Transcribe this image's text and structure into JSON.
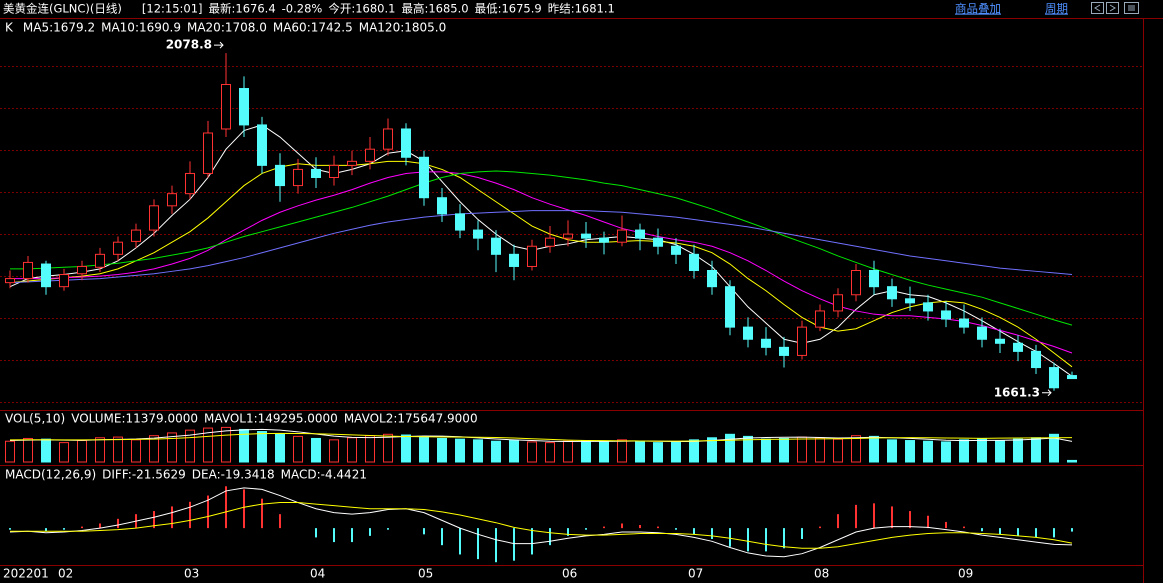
{
  "header": {
    "title": "美黄金连(GLNC)(日线)",
    "time": "[12:15:01]",
    "items": [
      {
        "label": "最新:",
        "value": "1676.4",
        "color": "#00e600"
      },
      {
        "label": "",
        "value": "-0.28%",
        "color": "#00e600"
      },
      {
        "label": "今开:",
        "value": "1680.1",
        "color": "#00e600"
      },
      {
        "label": "最高:",
        "value": "1685.0",
        "color": "#ff3232"
      },
      {
        "label": "最低:",
        "value": "1675.9",
        "color": "#00e600"
      },
      {
        "label": "昨结:",
        "value": "1681.1",
        "color": "#ffffff"
      }
    ],
    "buttons": [
      "商品叠加",
      "周期"
    ]
  },
  "chart_data": [
    {
      "type": "candlestick",
      "label": "K",
      "categories": [
        "202201",
        null,
        null,
        "02",
        null,
        null,
        null,
        null,
        null,
        null,
        "03",
        null,
        null,
        null,
        null,
        null,
        null,
        "04",
        null,
        null,
        null,
        null,
        null,
        "05",
        null,
        null,
        null,
        null,
        null,
        null,
        null,
        "06",
        null,
        null,
        null,
        null,
        null,
        null,
        "07",
        null,
        null,
        null,
        null,
        null,
        null,
        "08",
        null,
        null,
        null,
        null,
        null,
        null,
        null,
        "09",
        null,
        null,
        null,
        null,
        null,
        null
      ],
      "open": [
        1795,
        1800,
        1818,
        1790,
        1806,
        1814,
        1830,
        1846,
        1860,
        1890,
        1905,
        1930,
        1985,
        2035,
        1990,
        1940,
        1915,
        1935,
        1925,
        1940,
        1945,
        1960,
        1985,
        1950,
        1900,
        1880,
        1860,
        1850,
        1830,
        1815,
        1840,
        1850,
        1855,
        1850,
        1845,
        1860,
        1850,
        1840,
        1830,
        1810,
        1790,
        1740,
        1725,
        1715,
        1705,
        1740,
        1760,
        1780,
        1810,
        1790,
        1775,
        1770,
        1760,
        1750,
        1740,
        1725,
        1720,
        1710,
        1690,
        1680.1
      ],
      "high": [
        1810,
        1828,
        1822,
        1812,
        1822,
        1838,
        1852,
        1868,
        1898,
        1915,
        1945,
        1995,
        2078.8,
        2050,
        2000,
        1955,
        1948,
        1950,
        1952,
        1958,
        1975,
        1998,
        1992,
        1958,
        1912,
        1892,
        1872,
        1860,
        1842,
        1848,
        1865,
        1872,
        1870,
        1858,
        1878,
        1868,
        1862,
        1850,
        1842,
        1822,
        1798,
        1752,
        1740,
        1728,
        1748,
        1768,
        1788,
        1818,
        1822,
        1800,
        1790,
        1780,
        1772,
        1768,
        1752,
        1738,
        1730,
        1718,
        1696,
        1685.0
      ],
      "low": [
        1788,
        1795,
        1780,
        1785,
        1798,
        1808,
        1822,
        1838,
        1852,
        1880,
        1898,
        1925,
        1975,
        1975,
        1930,
        1895,
        1905,
        1912,
        1915,
        1928,
        1935,
        1952,
        1940,
        1890,
        1870,
        1850,
        1835,
        1808,
        1798,
        1810,
        1832,
        1840,
        1838,
        1830,
        1840,
        1835,
        1830,
        1818,
        1800,
        1780,
        1730,
        1715,
        1705,
        1690,
        1700,
        1735,
        1752,
        1772,
        1780,
        1765,
        1760,
        1748,
        1740,
        1732,
        1715,
        1708,
        1698,
        1682,
        1661.3,
        1675.9
      ],
      "close": [
        1800,
        1820,
        1790,
        1805,
        1815,
        1830,
        1845,
        1860,
        1890,
        1905,
        1930,
        1980,
        2040,
        1990,
        1940,
        1915,
        1935,
        1925,
        1940,
        1945,
        1960,
        1985,
        1950,
        1900,
        1880,
        1860,
        1850,
        1830,
        1815,
        1840,
        1850,
        1855,
        1850,
        1845,
        1860,
        1850,
        1840,
        1830,
        1810,
        1790,
        1740,
        1725,
        1715,
        1705,
        1740,
        1760,
        1780,
        1810,
        1790,
        1775,
        1770,
        1760,
        1750,
        1740,
        1725,
        1720,
        1710,
        1690,
        1665,
        1676.4
      ],
      "up_color": "#ff3232",
      "down_color": "#54fcfc",
      "ylim": [
        1640,
        2095
      ],
      "series": [
        {
          "name": "MA5:1679.2",
          "color": "#ffffff",
          "values": [
            1790,
            1800,
            1803,
            1805,
            1808,
            1812,
            1822,
            1838,
            1856,
            1878,
            1898,
            1925,
            1960,
            1983,
            1990,
            1975,
            1955,
            1935,
            1930,
            1935,
            1942,
            1955,
            1958,
            1945,
            1920,
            1895,
            1873,
            1855,
            1840,
            1835,
            1840,
            1843,
            1848,
            1850,
            1852,
            1850,
            1848,
            1842,
            1830,
            1815,
            1790,
            1765,
            1745,
            1725,
            1720,
            1725,
            1740,
            1762,
            1780,
            1785,
            1780,
            1778,
            1770,
            1760,
            1748,
            1735,
            1722,
            1710,
            1695,
            1679.2
          ]
        },
        {
          "name": "MA10:1690.9",
          "color": "#ffff00",
          "values": [
            1795,
            1797,
            1799,
            1801,
            1803,
            1806,
            1812,
            1822,
            1832,
            1845,
            1858,
            1875,
            1895,
            1915,
            1930,
            1938,
            1942,
            1940,
            1940,
            1940,
            1942,
            1945,
            1945,
            1942,
            1935,
            1925,
            1910,
            1895,
            1880,
            1865,
            1855,
            1848,
            1845,
            1845,
            1846,
            1847,
            1846,
            1844,
            1840,
            1832,
            1818,
            1800,
            1785,
            1768,
            1752,
            1740,
            1735,
            1738,
            1748,
            1758,
            1765,
            1770,
            1772,
            1770,
            1762,
            1752,
            1740,
            1725,
            1708,
            1690.9
          ]
        },
        {
          "name": "MA20:1708.0",
          "color": "#ff00ff",
          "values": [
            1800,
            1800,
            1800,
            1801,
            1802,
            1803,
            1805,
            1808,
            1812,
            1818,
            1825,
            1835,
            1848,
            1860,
            1872,
            1882,
            1890,
            1897,
            1903,
            1910,
            1918,
            1925,
            1930,
            1932,
            1932,
            1930,
            1925,
            1918,
            1910,
            1900,
            1892,
            1885,
            1878,
            1870,
            1862,
            1857,
            1852,
            1848,
            1845,
            1840,
            1832,
            1822,
            1810,
            1797,
            1785,
            1775,
            1766,
            1760,
            1756,
            1754,
            1754,
            1752,
            1750,
            1747,
            1742,
            1736,
            1730,
            1723,
            1716,
            1708.0
          ]
        },
        {
          "name": "MA60:1742.5",
          "color": "#00e600",
          "values": [
            1812,
            1812,
            1813,
            1814,
            1815,
            1817,
            1819,
            1822,
            1825,
            1829,
            1833,
            1838,
            1845,
            1852,
            1858,
            1864,
            1870,
            1876,
            1882,
            1888,
            1895,
            1902,
            1910,
            1918,
            1925,
            1930,
            1932,
            1933,
            1932,
            1930,
            1928,
            1925,
            1922,
            1918,
            1915,
            1910,
            1905,
            1900,
            1893,
            1886,
            1878,
            1870,
            1862,
            1853,
            1845,
            1837,
            1828,
            1820,
            1812,
            1805,
            1798,
            1792,
            1787,
            1782,
            1777,
            1770,
            1763,
            1756,
            1749,
            1742.5
          ]
        },
        {
          "name": "MA120:1805.0",
          "color": "#7070ff",
          "values": [
            1795,
            1796,
            1797,
            1798,
            1799,
            1800,
            1802,
            1804,
            1806,
            1809,
            1812,
            1816,
            1821,
            1826,
            1832,
            1838,
            1844,
            1850,
            1856,
            1861,
            1866,
            1870,
            1873,
            1876,
            1878,
            1880,
            1881,
            1882,
            1883,
            1884,
            1884,
            1884,
            1884,
            1883,
            1882,
            1880,
            1878,
            1876,
            1873,
            1870,
            1867,
            1864,
            1860,
            1856,
            1852,
            1848,
            1844,
            1840,
            1836,
            1832,
            1828,
            1825,
            1822,
            1819,
            1816,
            1813,
            1811,
            1809,
            1807,
            1805.0
          ]
        }
      ]
    },
    {
      "type": "volume",
      "label": "VOL(5,10)",
      "value_name": "VOLUME:11379.0000",
      "ylim": [
        0,
        260000
      ],
      "values": [
        150000,
        170000,
        165000,
        140000,
        155000,
        175000,
        180000,
        160000,
        190000,
        210000,
        230000,
        245000,
        250000,
        235000,
        220000,
        200000,
        185000,
        170000,
        160000,
        175000,
        190000,
        200000,
        195000,
        180000,
        170000,
        165000,
        160000,
        150000,
        155000,
        145000,
        140000,
        150000,
        155000,
        145000,
        160000,
        150000,
        140000,
        145000,
        160000,
        175000,
        200000,
        185000,
        165000,
        170000,
        180000,
        175000,
        165000,
        190000,
        185000,
        160000,
        155000,
        150000,
        145000,
        160000,
        170000,
        155000,
        165000,
        175000,
        200000,
        11379
      ],
      "series": [
        {
          "name": "MAVOL1:149295.0000",
          "color": "#ffffff",
          "values": [
            155000,
            158000,
            160000,
            158000,
            156000,
            161000,
            163000,
            166000,
            172000,
            183000,
            194000,
            211000,
            225000,
            232000,
            236000,
            230000,
            218000,
            202000,
            187000,
            178000,
            176000,
            179000,
            184000,
            188000,
            187000,
            182000,
            174000,
            166000,
            160000,
            155000,
            150000,
            148000,
            149000,
            149000,
            150000,
            152000,
            150000,
            148000,
            148000,
            155000,
            164000,
            173000,
            177000,
            179000,
            180000,
            177000,
            173000,
            175000,
            179000,
            175000,
            171000,
            164000,
            157000,
            154000,
            156000,
            156000,
            159000,
            165000,
            173000,
            149295
          ]
        },
        {
          "name": "MAVOL2:175647.9000",
          "color": "#ffff00",
          "values": [
            160000,
            161000,
            161000,
            160000,
            160000,
            161000,
            162000,
            163000,
            165000,
            170000,
            176000,
            185000,
            194000,
            200000,
            205000,
            207000,
            206000,
            204000,
            200000,
            196000,
            191000,
            187000,
            184000,
            182000,
            181000,
            180000,
            179000,
            177000,
            173000,
            168000,
            163000,
            158000,
            155000,
            154000,
            153000,
            152000,
            151000,
            151000,
            152000,
            154000,
            157000,
            161000,
            163000,
            164000,
            166000,
            167000,
            168000,
            170000,
            173000,
            175000,
            176000,
            175000,
            173000,
            172000,
            171000,
            172000,
            173000,
            174000,
            175000,
            175647.9
          ]
        }
      ]
    },
    {
      "type": "macd",
      "label": "MACD(12,26,9)",
      "value_name": "MACD:-4.4421",
      "ylim": [
        -45,
        75
      ],
      "values": [
        -2,
        0,
        -4,
        -2,
        2,
        6,
        12,
        18,
        22,
        28,
        34,
        42,
        54,
        50,
        38,
        18,
        0,
        -12,
        -18,
        -18,
        -10,
        -2,
        0,
        -8,
        -22,
        -34,
        -40,
        -44,
        -42,
        -34,
        -22,
        -10,
        -2,
        2,
        6,
        4,
        2,
        -2,
        -8,
        -14,
        -24,
        -30,
        -30,
        -26,
        -14,
        2,
        18,
        30,
        32,
        28,
        22,
        16,
        8,
        2,
        -4,
        -8,
        -10,
        -12,
        -12,
        -4.4421
      ],
      "series": [
        {
          "name": "DIFF:-21.5629",
          "color": "#ffffff",
          "values": [
            -5,
            -4,
            -6,
            -5,
            -3,
            0,
            4,
            9,
            14,
            20,
            27,
            36,
            48,
            52,
            50,
            42,
            33,
            25,
            20,
            18,
            20,
            24,
            25,
            20,
            10,
            0,
            -8,
            -15,
            -20,
            -20,
            -17,
            -13,
            -10,
            -8,
            -5,
            -5,
            -6,
            -8,
            -12,
            -17,
            -25,
            -32,
            -36,
            -37,
            -33,
            -25,
            -15,
            -5,
            0,
            2,
            2,
            1,
            -2,
            -5,
            -9,
            -12,
            -15,
            -18,
            -21,
            -21.5629
          ]
        },
        {
          "name": "DEA:-19.3418",
          "color": "#ffff00",
          "values": [
            -4,
            -4,
            -4,
            -4,
            -4,
            -3,
            -2,
            0,
            3,
            6,
            10,
            15,
            21,
            27,
            31,
            33,
            33,
            31,
            29,
            27,
            25,
            25,
            25,
            24,
            21,
            17,
            12,
            7,
            1,
            -3,
            -6,
            -8,
            -9,
            -9,
            -8,
            -7,
            -7,
            -7,
            -8,
            -10,
            -13,
            -17,
            -21,
            -24,
            -26,
            -26,
            -24,
            -20,
            -16,
            -12,
            -9,
            -7,
            -6,
            -6,
            -7,
            -8,
            -10,
            -12,
            -15,
            -19.3418
          ]
        }
      ]
    }
  ]
}
